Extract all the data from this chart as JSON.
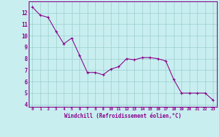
{
  "x": [
    0,
    1,
    2,
    3,
    4,
    5,
    6,
    7,
    8,
    9,
    10,
    11,
    12,
    13,
    14,
    15,
    16,
    17,
    18,
    19,
    20,
    21,
    22,
    23
  ],
  "y": [
    12.5,
    11.8,
    11.6,
    10.4,
    9.3,
    9.8,
    8.3,
    6.8,
    6.8,
    6.6,
    7.1,
    7.3,
    8.0,
    7.9,
    8.1,
    8.1,
    8.0,
    7.8,
    6.2,
    5.0,
    5.0,
    5.0,
    5.0,
    4.4
  ],
  "line_color": "#880088",
  "marker": "+",
  "marker_size": 3,
  "bg_color": "#c8eef0",
  "grid_color": "#99cccc",
  "xlabel": "Windchill (Refroidissement éolien,°C)",
  "xlim_min": -0.5,
  "xlim_max": 23.5,
  "ylim_min": 3.8,
  "ylim_max": 13.0,
  "xticks": [
    0,
    1,
    2,
    3,
    4,
    5,
    6,
    7,
    8,
    9,
    10,
    11,
    12,
    13,
    14,
    15,
    16,
    17,
    18,
    19,
    20,
    21,
    22,
    23
  ],
  "yticks": [
    4,
    5,
    6,
    7,
    8,
    9,
    10,
    11,
    12
  ],
  "tick_label_color": "#880088",
  "label_color": "#880088",
  "spine_color": "#880088"
}
